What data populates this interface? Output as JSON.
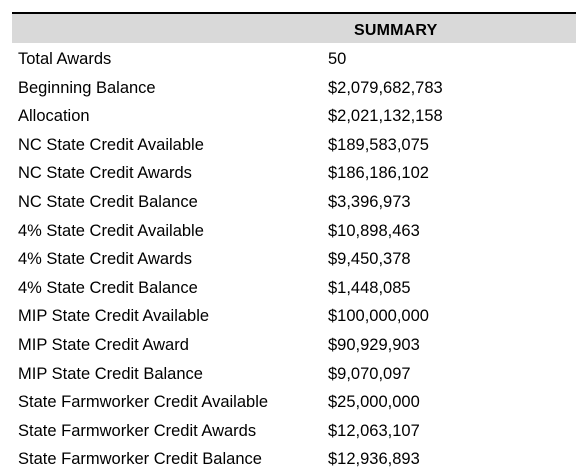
{
  "table": {
    "header": "SUMMARY",
    "rows": [
      {
        "label": "Total Awards",
        "value": "50"
      },
      {
        "label": "Beginning Balance",
        "value": "$2,079,682,783"
      },
      {
        "label": "Allocation",
        "value": "$2,021,132,158"
      },
      {
        "label": "NC State Credit Available",
        "value": "$189,583,075"
      },
      {
        "label": "NC State Credit Awards",
        "value": "$186,186,102"
      },
      {
        "label": "NC State Credit Balance",
        "value": "$3,396,973"
      },
      {
        "label": "4% State Credit Available",
        "value": "$10,898,463"
      },
      {
        "label": "4% State Credit Awards",
        "value": "$9,450,378"
      },
      {
        "label": "4% State Credit Balance",
        "value": "$1,448,085"
      },
      {
        "label": "MIP State Credit Available",
        "value": "$100,000,000"
      },
      {
        "label": "MIP State Credit Award",
        "value": "$90,929,903"
      },
      {
        "label": "MIP State Credit Balance",
        "value": "$9,070,097"
      },
      {
        "label": "State Farmworker Credit Available",
        "value": "$25,000,000"
      },
      {
        "label": "State Farmworker Credit Awards",
        "value": "$12,063,107"
      },
      {
        "label": "State Farmworker Credit Balance",
        "value": "$12,936,893"
      }
    ]
  }
}
